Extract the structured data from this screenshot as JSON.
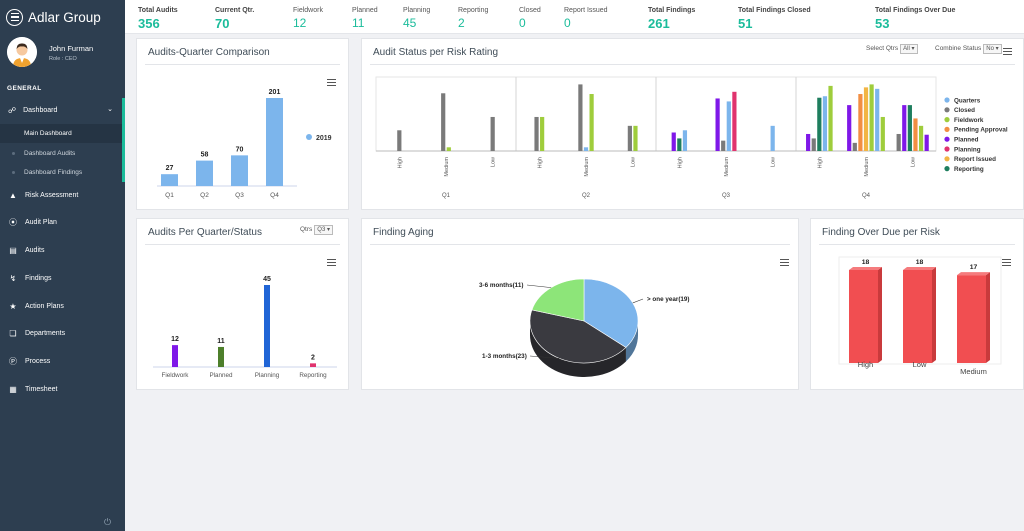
{
  "app": {
    "title": "Adlar Group"
  },
  "user": {
    "name": "John Furman",
    "role": "Role : CEO"
  },
  "sidebar": {
    "section": "GENERAL",
    "dashboard": {
      "label": "Dashboard",
      "sub": [
        "Main Dashboard",
        "Dashboard Audits",
        "Dashboard Findings"
      ]
    },
    "items": [
      "Risk Assessment",
      "Audit Plan",
      "Audits",
      "Findings",
      "Action Plans",
      "Departments",
      "Process",
      "Timesheet"
    ]
  },
  "stats": [
    {
      "label": "Total Audits",
      "value": "356"
    },
    {
      "label": "Current Qtr.",
      "value": "70"
    },
    {
      "label": "Fieldwork",
      "value": "12"
    },
    {
      "label": "Planned",
      "value": "11"
    },
    {
      "label": "Planning",
      "value": "45"
    },
    {
      "label": "Reporting",
      "value": "2"
    },
    {
      "label": "Closed",
      "value": "0"
    },
    {
      "label": "Report Issued",
      "value": "0"
    },
    {
      "label": "Total Findings",
      "value": "261"
    },
    {
      "label": "Total Findings Closed",
      "value": "51"
    },
    {
      "label": "Total Findings Over Due",
      "value": "53"
    }
  ],
  "cards": {
    "quarter_comparison": {
      "title": "Audits-Quarter Comparison"
    },
    "risk_status": {
      "title": "Audit Status per Risk Rating",
      "select_qtrs_label": "Select Qtrs",
      "select_qtrs_value": "All",
      "combine_label": "Combine Status",
      "combine_value": "No"
    },
    "quarter_status": {
      "title": "Audits Per Quarter/Status",
      "qtrs_label": "Qtrs",
      "qtrs_value": "Q3"
    },
    "finding_aging": {
      "title": "Finding Aging"
    },
    "overdue_risk": {
      "title": "Finding Over Due per Risk"
    }
  },
  "colors": {
    "accent": "#1bbc9b",
    "sidebar": "#2d3e50"
  },
  "chart_data": [
    {
      "id": "quarter_comparison",
      "type": "bar",
      "categories": [
        "Q1",
        "Q2",
        "Q3",
        "Q4"
      ],
      "series": [
        {
          "name": "2019",
          "values": [
            27,
            58,
            70,
            201
          ],
          "color": "#7cb5ec"
        }
      ],
      "ylim": [
        0,
        201
      ],
      "legend": "right"
    },
    {
      "id": "risk_status",
      "type": "bar",
      "groups": [
        "Q1",
        "Q2",
        "Q3",
        "Q4"
      ],
      "risks": [
        "High",
        "Medium",
        "Low"
      ],
      "series": [
        {
          "name": "Quarters",
          "color": "#7cb5ec"
        },
        {
          "name": "Closed",
          "color": "#7a7a7a"
        },
        {
          "name": "Fieldwork",
          "color": "#9fcd3c"
        },
        {
          "name": "Pending Approval",
          "color": "#f28e43"
        },
        {
          "name": "Planned",
          "color": "#7f18e8"
        },
        {
          "name": "Planning",
          "color": "#e0336e"
        },
        {
          "name": "Report Issued",
          "color": "#f2b544"
        },
        {
          "name": "Reporting",
          "color": "#1e7e5e"
        }
      ],
      "bars": [
        {
          "q": 0,
          "r": 0,
          "values": [
            {
              "s": 1,
              "v": 28
            }
          ]
        },
        {
          "q": 0,
          "r": 1,
          "values": [
            {
              "s": 1,
              "v": 78
            },
            {
              "s": 2,
              "v": 5
            }
          ]
        },
        {
          "q": 0,
          "r": 2,
          "values": [
            {
              "s": 1,
              "v": 46
            }
          ]
        },
        {
          "q": 1,
          "r": 0,
          "values": [
            {
              "s": 1,
              "v": 46
            },
            {
              "s": 2,
              "v": 46
            }
          ]
        },
        {
          "q": 1,
          "r": 1,
          "values": [
            {
              "s": 1,
              "v": 90
            },
            {
              "s": 0,
              "v": 5
            },
            {
              "s": 2,
              "v": 77
            }
          ]
        },
        {
          "q": 1,
          "r": 2,
          "values": [
            {
              "s": 1,
              "v": 34
            },
            {
              "s": 2,
              "v": 34
            }
          ]
        },
        {
          "q": 2,
          "r": 0,
          "values": [
            {
              "s": 4,
              "v": 25
            },
            {
              "s": 7,
              "v": 17
            },
            {
              "s": 0,
              "v": 28
            }
          ]
        },
        {
          "q": 2,
          "r": 1,
          "values": [
            {
              "s": 4,
              "v": 71
            },
            {
              "s": 1,
              "v": 14
            },
            {
              "s": 0,
              "v": 67
            },
            {
              "s": 5,
              "v": 80
            }
          ]
        },
        {
          "q": 2,
          "r": 2,
          "values": [
            {
              "s": 0,
              "v": 34
            }
          ]
        },
        {
          "q": 3,
          "r": 0,
          "values": [
            {
              "s": 4,
              "v": 23
            },
            {
              "s": 1,
              "v": 17
            },
            {
              "s": 7,
              "v": 72
            },
            {
              "s": 0,
              "v": 74
            },
            {
              "s": 2,
              "v": 88
            }
          ]
        },
        {
          "q": 3,
          "r": 1,
          "values": [
            {
              "s": 4,
              "v": 62
            },
            {
              "s": 1,
              "v": 11
            },
            {
              "s": 3,
              "v": 77
            },
            {
              "s": 6,
              "v": 86
            },
            {
              "s": 2,
              "v": 90
            },
            {
              "s": 0,
              "v": 84
            },
            {
              "s": 2,
              "v": 46
            }
          ]
        },
        {
          "q": 3,
          "r": 2,
          "values": [
            {
              "s": 1,
              "v": 23
            },
            {
              "s": 4,
              "v": 62
            },
            {
              "s": 7,
              "v": 62
            },
            {
              "s": 3,
              "v": 44
            },
            {
              "s": 2,
              "v": 34
            },
            {
              "s": 4,
              "v": 22
            }
          ]
        }
      ],
      "ylim": [
        0,
        100
      ],
      "legend": "right"
    },
    {
      "id": "quarter_status",
      "type": "bar",
      "categories": [
        "Fieldwork",
        "Planned",
        "Planning",
        "Reporting"
      ],
      "values": [
        12,
        11,
        45,
        2
      ],
      "colors": [
        "#7f18e8",
        "#4d7f2b",
        "#2065d6",
        "#e0336e"
      ],
      "ylim": [
        0,
        45
      ]
    },
    {
      "id": "finding_aging",
      "type": "pie",
      "labels": [
        "> one year(19)",
        "1-3 months(23)",
        "3-6 months(11)"
      ],
      "values": [
        19,
        23,
        11
      ],
      "colors": [
        "#7cb5ec",
        "#3a3a40",
        "#8de579"
      ]
    },
    {
      "id": "overdue_risk",
      "type": "bar",
      "categories": [
        "High",
        "Low",
        "Medium"
      ],
      "values": [
        18,
        18,
        17
      ],
      "color": "#f14e51",
      "ylim": [
        0,
        18
      ]
    }
  ]
}
